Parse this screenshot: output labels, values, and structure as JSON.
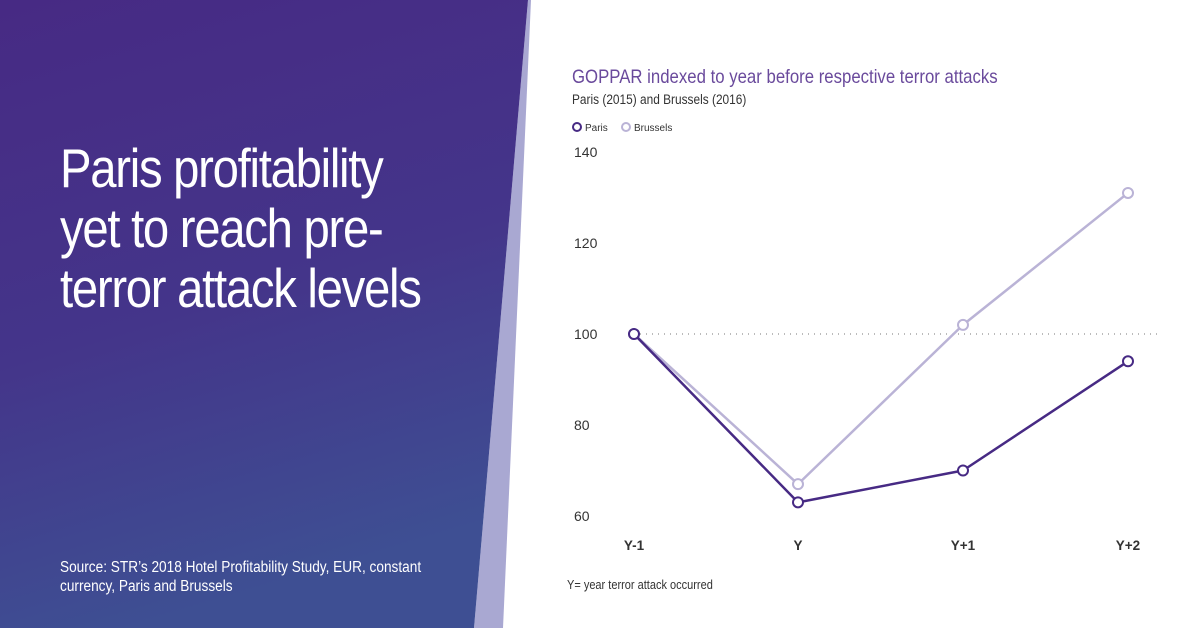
{
  "headline": "Paris profitability yet to reach pre-terror attack levels",
  "source": "Source: STR’s 2018 Hotel Profitability Study, EUR, constant currency, Paris and Brussels",
  "footnote": "Y= year terror attack occurred",
  "colors": {
    "panel_top": "#472a84",
    "panel_bottom": "#3e4f93",
    "panel_accent": "#a9a8d2",
    "title": "#6a4a9c",
    "paris": "#472a84",
    "brussels": "#bab3d6",
    "reference": "#777777"
  },
  "chart_data": {
    "type": "line",
    "title": "GOPPAR indexed to year before respective terror attacks",
    "subtitle": "Paris (2015) and Brussels (2016)",
    "categories": [
      "Y-1",
      "Y",
      "Y+1",
      "Y+2"
    ],
    "series": [
      {
        "name": "Paris",
        "values": [
          100,
          63,
          70,
          94
        ]
      },
      {
        "name": "Brussels",
        "values": [
          100,
          67,
          102,
          131
        ]
      }
    ],
    "y_ticks": [
      "140",
      "120",
      "100",
      "80",
      "60"
    ],
    "ylim": [
      60,
      140
    ],
    "reference_line": 100,
    "legend_position": "top-left",
    "grid": false
  }
}
